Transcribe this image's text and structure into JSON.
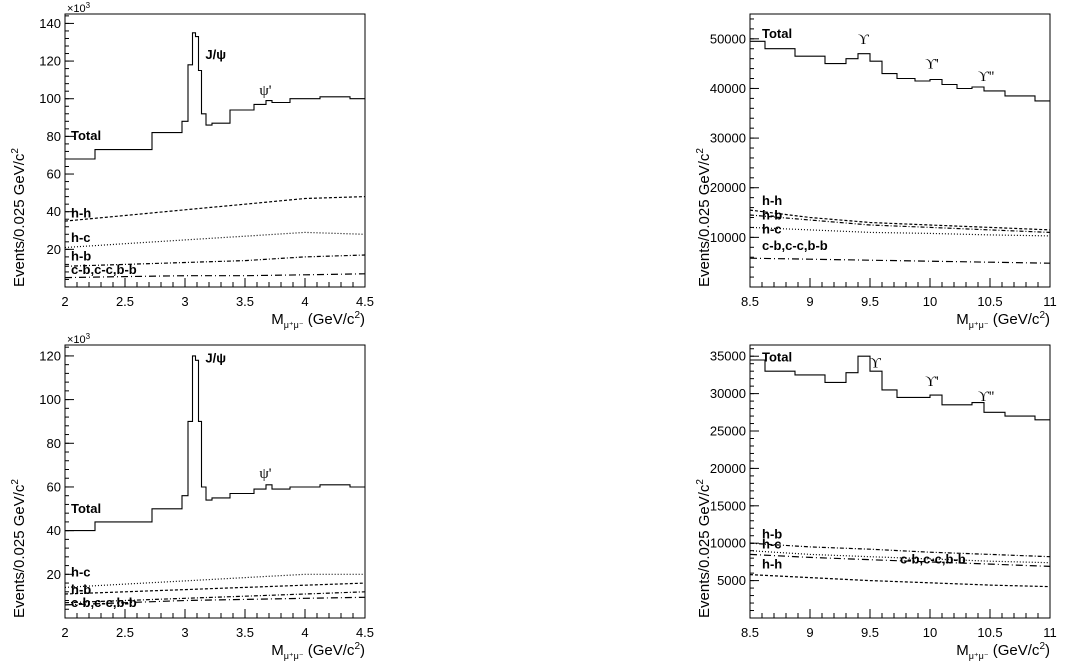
{
  "chart_data": [
    {
      "type": "line",
      "panel": "top-left",
      "ylabel": "Events/0.025 GeV/c",
      "ylabel_sup": "2",
      "xlabel_main": "M",
      "xlabel_sub": "μ⁺μ⁻",
      "xlabel_tail": " (GeV/c",
      "xlabel_sup": "2",
      "xlabel_close": ")",
      "multiplier": "×10",
      "multiplier_sup": "3",
      "xlim": [
        2,
        4.5
      ],
      "ylim": [
        0,
        145
      ],
      "xticks": [
        2,
        2.5,
        3,
        3.5,
        4,
        4.5
      ],
      "xtick_labels": [
        "2",
        "2.5",
        "3",
        "3.5",
        "4",
        "4.5"
      ],
      "yticks": [
        20,
        40,
        60,
        80,
        100,
        120,
        140
      ],
      "ytick_labels": [
        "20",
        "40",
        "60",
        "80",
        "100",
        "120",
        "140"
      ],
      "series": [
        {
          "name": "Total",
          "style": "solid",
          "x": [
            2,
            2.5,
            2.95,
            3.0,
            3.05,
            3.075,
            3.1,
            3.125,
            3.15,
            3.2,
            3.25,
            3.5,
            3.65,
            3.7,
            3.75,
            4.0,
            4.25,
            4.5
          ],
          "y": [
            68,
            73,
            82,
            88,
            118,
            135,
            133,
            115,
            92,
            86,
            87,
            94,
            97,
            99,
            98,
            100,
            101,
            100
          ]
        },
        {
          "name": "h-h",
          "style": "dashed",
          "x": [
            2,
            2.5,
            3,
            3.5,
            4,
            4.5
          ],
          "y": [
            35,
            38,
            41,
            44,
            47,
            48
          ]
        },
        {
          "name": "h-c",
          "style": "dotted",
          "x": [
            2,
            2.5,
            3,
            3.5,
            4,
            4.5
          ],
          "y": [
            21,
            23,
            25,
            27,
            29,
            28
          ]
        },
        {
          "name": "h-b",
          "style": "dashdot",
          "x": [
            2,
            2.5,
            3,
            3.5,
            4,
            4.5
          ],
          "y": [
            11,
            12,
            13,
            14,
            16,
            17
          ]
        },
        {
          "name": "c-b,c-c,b-b",
          "style": "dashdot2",
          "x": [
            2,
            2.5,
            3,
            3.5,
            4,
            4.5
          ],
          "y": [
            5,
            5.5,
            6,
            6,
            6.5,
            7
          ]
        }
      ],
      "annotations": [
        {
          "text": "J/ψ",
          "x": 3.17,
          "y": 121,
          "bold": true
        },
        {
          "text": "ψ'",
          "x": 3.62,
          "y": 102,
          "bold": false
        },
        {
          "text": "Total",
          "x": 2.05,
          "y": 78,
          "bold": true
        },
        {
          "text": "h-h",
          "x": 2.05,
          "y": 37,
          "bold": true
        },
        {
          "text": "h-c",
          "x": 2.05,
          "y": 24,
          "bold": true
        },
        {
          "text": "h-b",
          "x": 2.05,
          "y": 14,
          "bold": true
        },
        {
          "text": "c-b,c-c,b-b",
          "x": 2.05,
          "y": 7,
          "bold": true
        }
      ]
    },
    {
      "type": "line",
      "panel": "top-right",
      "ylabel": "Events/0.025 GeV/c",
      "ylabel_sup": "2",
      "xlabel_main": "M",
      "xlabel_sub": "μ⁺μ⁻",
      "xlabel_tail": " (GeV/c",
      "xlabel_sup": "2",
      "xlabel_close": ")",
      "multiplier": "",
      "multiplier_sup": "",
      "xlim": [
        8.5,
        11
      ],
      "ylim": [
        0,
        55000
      ],
      "xticks": [
        8.5,
        9,
        9.5,
        10,
        10.5,
        11
      ],
      "xtick_labels": [
        "8.5",
        "9",
        "9.5",
        "10",
        "10.5",
        "11"
      ],
      "yticks": [
        10000,
        20000,
        30000,
        40000,
        50000
      ],
      "ytick_labels": [
        "10000",
        "20000",
        "30000",
        "40000",
        "50000"
      ],
      "series": [
        {
          "name": "Total",
          "style": "solid",
          "x": [
            8.5,
            8.75,
            9.0,
            9.25,
            9.35,
            9.45,
            9.55,
            9.65,
            9.8,
            9.95,
            10.05,
            10.15,
            10.3,
            10.4,
            10.5,
            10.75,
            11
          ],
          "y": [
            49500,
            48000,
            46500,
            45000,
            46000,
            47000,
            45500,
            43000,
            42000,
            41500,
            41800,
            40800,
            40000,
            40300,
            39500,
            38500,
            37500
          ]
        },
        {
          "name": "h-h",
          "style": "dashed",
          "x": [
            8.5,
            9,
            9.5,
            10,
            10.5,
            11
          ],
          "y": [
            15500,
            14000,
            13000,
            12500,
            12000,
            11500
          ]
        },
        {
          "name": "h-b",
          "style": "dashdot",
          "x": [
            8.5,
            9,
            9.5,
            10,
            10.5,
            11
          ],
          "y": [
            14500,
            13500,
            12500,
            12000,
            11500,
            11000
          ]
        },
        {
          "name": "h-c",
          "style": "dotted",
          "x": [
            8.5,
            9,
            9.5,
            10,
            10.5,
            11
          ],
          "y": [
            12000,
            11500,
            11000,
            10800,
            10500,
            10300
          ]
        },
        {
          "name": "c-b,c-c,b-b",
          "style": "dashdot2",
          "x": [
            8.5,
            9,
            9.5,
            10,
            10.5,
            11
          ],
          "y": [
            5800,
            5600,
            5400,
            5200,
            5000,
            4800
          ]
        }
      ],
      "annotations": [
        {
          "text": "Total",
          "x": 8.6,
          "y": 50200,
          "bold": true
        },
        {
          "text": "ϒ",
          "x": 9.4,
          "y": 49000,
          "bold": false
        },
        {
          "text": "ϒ'",
          "x": 9.96,
          "y": 44000,
          "bold": false
        },
        {
          "text": "ϒ''",
          "x": 10.4,
          "y": 41500,
          "bold": false
        },
        {
          "text": "h-h",
          "x": 8.6,
          "y": 16500,
          "bold": true
        },
        {
          "text": "h-b",
          "x": 8.6,
          "y": 13600,
          "bold": true
        },
        {
          "text": "h-c",
          "x": 8.6,
          "y": 10800,
          "bold": true
        },
        {
          "text": "c-b,c-c,b-b",
          "x": 8.6,
          "y": 7500,
          "bold": true
        }
      ]
    },
    {
      "type": "line",
      "panel": "bottom-left",
      "ylabel": "Events/0.025 GeV/c",
      "ylabel_sup": "2",
      "xlabel_main": "M",
      "xlabel_sub": "μ⁺μ⁻",
      "xlabel_tail": " (GeV/c",
      "xlabel_sup": "2",
      "xlabel_close": ")",
      "multiplier": "×10",
      "multiplier_sup": "3",
      "xlim": [
        2,
        4.5
      ],
      "ylim": [
        0,
        125
      ],
      "xticks": [
        2,
        2.5,
        3,
        3.5,
        4,
        4.5
      ],
      "xtick_labels": [
        "2",
        "2.5",
        "3",
        "3.5",
        "4",
        "4.5"
      ],
      "yticks": [
        20,
        40,
        60,
        80,
        100,
        120
      ],
      "ytick_labels": [
        "20",
        "40",
        "60",
        "80",
        "100",
        "120"
      ],
      "series": [
        {
          "name": "Total",
          "style": "solid",
          "x": [
            2,
            2.5,
            2.95,
            3.0,
            3.05,
            3.075,
            3.1,
            3.125,
            3.15,
            3.2,
            3.25,
            3.5,
            3.65,
            3.7,
            3.75,
            4.0,
            4.25,
            4.5
          ],
          "y": [
            40,
            44,
            50,
            56,
            90,
            120,
            118,
            90,
            60,
            54,
            55,
            57,
            59,
            61,
            59,
            60,
            61,
            60
          ]
        },
        {
          "name": "h-c",
          "style": "dotted",
          "x": [
            2,
            2.5,
            3,
            3.5,
            4,
            4.5
          ],
          "y": [
            14,
            15.5,
            17,
            18.5,
            20,
            20
          ]
        },
        {
          "name": "h-b",
          "style": "dashed",
          "x": [
            2,
            2.5,
            3,
            3.5,
            4,
            4.5
          ],
          "y": [
            11,
            12,
            13,
            14,
            15,
            16
          ]
        },
        {
          "name": "h-h",
          "style": "dashdot",
          "x": [
            2,
            2.5,
            3,
            3.5,
            4,
            4.5
          ],
          "y": [
            7,
            8,
            9,
            10,
            11,
            12
          ]
        },
        {
          "name": "c-b,c-c,b-b",
          "style": "dashdot2",
          "x": [
            2,
            2.5,
            3,
            3.5,
            4,
            4.5
          ],
          "y": [
            6,
            7,
            8,
            8.5,
            9,
            9.5
          ]
        }
      ],
      "annotations": [
        {
          "text": "J/ψ",
          "x": 3.17,
          "y": 117,
          "bold": true
        },
        {
          "text": "ψ'",
          "x": 3.62,
          "y": 64,
          "bold": false
        },
        {
          "text": "Total",
          "x": 2.05,
          "y": 48,
          "bold": true
        },
        {
          "text": "h-c",
          "x": 2.05,
          "y": 19,
          "bold": true
        },
        {
          "text": "h-b",
          "x": 2.05,
          "y": 11,
          "bold": true
        },
        {
          "text": "c-b,c-c,b-b",
          "x": 2.05,
          "y": 5,
          "bold": true
        }
      ]
    },
    {
      "type": "line",
      "panel": "bottom-right",
      "ylabel": "Events/0.025 GeV/c",
      "ylabel_sup": "2",
      "xlabel_main": "M",
      "xlabel_sub": "μ⁺μ⁻",
      "xlabel_tail": " (GeV/c",
      "xlabel_sup": "2",
      "xlabel_close": ")",
      "multiplier": "",
      "multiplier_sup": "",
      "xlim": [
        8.5,
        11
      ],
      "ylim": [
        0,
        36500
      ],
      "xticks": [
        8.5,
        9,
        9.5,
        10,
        10.5,
        11
      ],
      "xtick_labels": [
        "8.5",
        "9",
        "9.5",
        "10",
        "10.5",
        "11"
      ],
      "yticks": [
        5000,
        10000,
        15000,
        20000,
        25000,
        30000,
        35000
      ],
      "ytick_labels": [
        "5000",
        "10000",
        "15000",
        "20000",
        "25000",
        "30000",
        "35000"
      ],
      "series": [
        {
          "name": "Total",
          "style": "solid",
          "x": [
            8.5,
            8.75,
            9.0,
            9.25,
            9.35,
            9.45,
            9.55,
            9.65,
            9.8,
            9.95,
            10.05,
            10.15,
            10.3,
            10.4,
            10.5,
            10.75,
            11
          ],
          "y": [
            34500,
            33000,
            32500,
            31500,
            32800,
            35000,
            33000,
            30500,
            29500,
            29500,
            29800,
            28500,
            28500,
            28800,
            27500,
            27000,
            26500
          ]
        },
        {
          "name": "h-b",
          "style": "dashdot",
          "x": [
            8.5,
            9,
            9.5,
            10,
            10.5,
            11
          ],
          "y": [
            10000,
            9500,
            9200,
            8800,
            8500,
            8200
          ]
        },
        {
          "name": "h-c",
          "style": "dotted",
          "x": [
            8.5,
            9,
            9.5,
            10,
            10.5,
            11
          ],
          "y": [
            9000,
            8500,
            8200,
            7900,
            7600,
            7400
          ]
        },
        {
          "name": "c-b,c-c,b-b",
          "style": "dashdot2",
          "x": [
            8.5,
            9,
            9.5,
            10,
            10.5,
            11
          ],
          "y": [
            8500,
            8100,
            7800,
            7500,
            7200,
            6900
          ]
        },
        {
          "name": "h-h",
          "style": "dashed",
          "x": [
            8.5,
            9,
            9.5,
            10,
            10.5,
            11
          ],
          "y": [
            5800,
            5400,
            5000,
            4700,
            4400,
            4200
          ]
        }
      ],
      "annotations": [
        {
          "text": "Total",
          "x": 8.6,
          "y": 34300,
          "bold": true
        },
        {
          "text": "ϒ",
          "x": 9.5,
          "y": 33500,
          "bold": false
        },
        {
          "text": "ϒ'",
          "x": 9.96,
          "y": 31000,
          "bold": false
        },
        {
          "text": "ϒ''",
          "x": 10.4,
          "y": 29000,
          "bold": false
        },
        {
          "text": "h-b",
          "x": 8.6,
          "y": 10600,
          "bold": true
        },
        {
          "text": "h-c",
          "x": 8.6,
          "y": 9300,
          "bold": true
        },
        {
          "text": "c-b,c-c,b-b",
          "x": 9.75,
          "y": 7300,
          "bold": true
        },
        {
          "text": "h-h",
          "x": 8.6,
          "y": 6600,
          "bold": true
        }
      ]
    }
  ]
}
